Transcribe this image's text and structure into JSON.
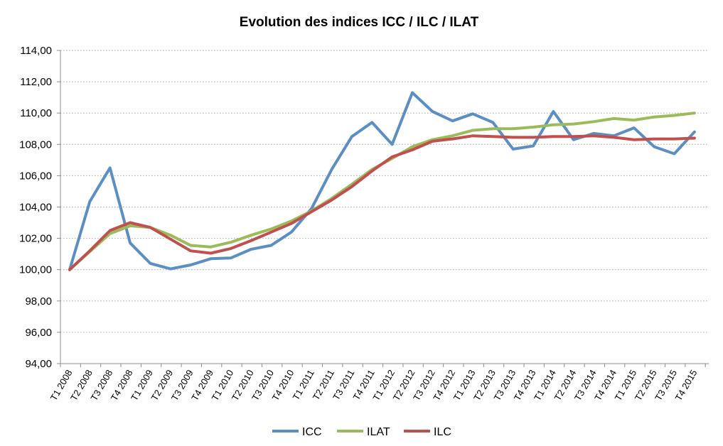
{
  "chart_data": {
    "type": "line",
    "title": "Evolution des indices ICC / ILC / ILAT",
    "xlabel": "",
    "ylabel": "",
    "ylim": [
      94,
      114
    ],
    "ytick_values": [
      94,
      96,
      98,
      100,
      102,
      104,
      106,
      108,
      110,
      112,
      114
    ],
    "ytick_labels": [
      "94,00",
      "96,00",
      "98,00",
      "100,00",
      "102,00",
      "104,00",
      "106,00",
      "108,00",
      "110,00",
      "112,00",
      "114,00"
    ],
    "grid": true,
    "legend_position": "bottom",
    "categories": [
      "T1 2008",
      "T2 2008",
      "T3 2008",
      "T4 2008",
      "T1 2009",
      "T2 2009",
      "T3 2009",
      "T4 2009",
      "T1 2010",
      "T2 2010",
      "T3 2010",
      "T4 2010",
      "T1 2011",
      "T2 2011",
      "T3 2011",
      "T4 2011",
      "T1 2012",
      "T2 2012",
      "T3 2012",
      "T4 2012",
      "T1 2013",
      "T2 2013",
      "T3 2013",
      "T4 2013",
      "T1 2014",
      "T2 2014",
      "T3 2014",
      "T4 2014",
      "T1 2015",
      "T2 2015",
      "T3 2015",
      "T4 2015"
    ],
    "series": [
      {
        "name": "ICC",
        "color": "#5b8fc4",
        "values": [
          100.0,
          104.35,
          106.5,
          101.7,
          100.4,
          100.05,
          100.3,
          100.7,
          100.75,
          101.3,
          101.55,
          102.4,
          103.9,
          106.4,
          108.5,
          109.4,
          108.0,
          111.3,
          110.1,
          109.5,
          109.95,
          109.4,
          107.7,
          107.9,
          110.1,
          108.3,
          108.7,
          108.55,
          109.05,
          107.85,
          107.4,
          108.8
        ]
      },
      {
        "name": "ILAT",
        "color": "#9bbb59",
        "values": [
          100.0,
          101.15,
          102.3,
          102.8,
          102.7,
          102.2,
          101.55,
          101.45,
          101.75,
          102.2,
          102.6,
          103.1,
          103.75,
          104.55,
          105.45,
          106.4,
          107.1,
          107.85,
          108.3,
          108.55,
          108.9,
          109.0,
          109.0,
          109.1,
          109.25,
          109.3,
          109.45,
          109.65,
          109.55,
          109.75,
          109.85,
          110.0
        ]
      },
      {
        "name": "ILC",
        "color": "#c0504d",
        "values": [
          100.0,
          101.2,
          102.5,
          103.0,
          102.7,
          101.95,
          101.2,
          101.05,
          101.35,
          101.85,
          102.4,
          102.95,
          103.7,
          104.45,
          105.3,
          106.3,
          107.2,
          107.65,
          108.2,
          108.35,
          108.55,
          108.5,
          108.45,
          108.45,
          108.5,
          108.5,
          108.55,
          108.45,
          108.3,
          108.35,
          108.35,
          108.4
        ]
      }
    ]
  }
}
